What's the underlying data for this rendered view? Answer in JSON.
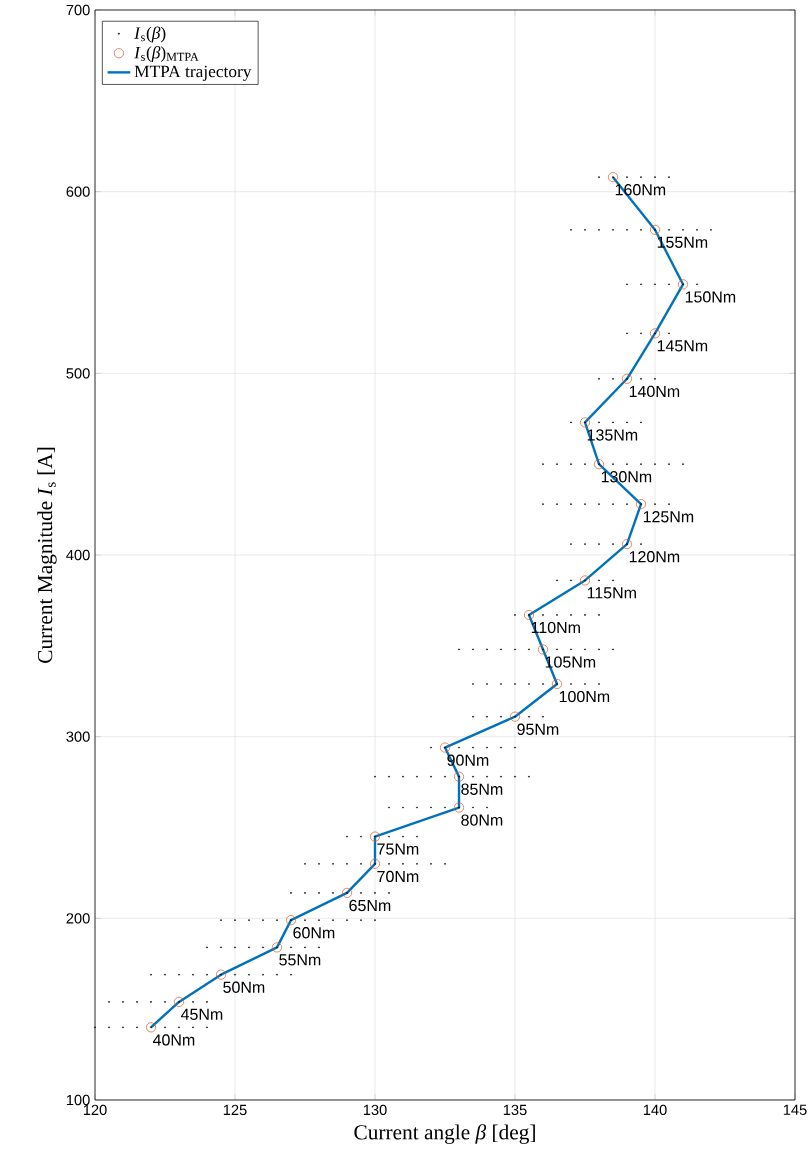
{
  "chart_data": {
    "type": "scatter",
    "xlabel": "Current angle *β* [deg]",
    "ylabel": "Current Magnitude *I*$_{s}$ [A]",
    "xlim": [
      120,
      145
    ],
    "ylim": [
      100,
      700
    ],
    "xticks": [
      120,
      125,
      130,
      135,
      140,
      145
    ],
    "yticks": [
      100,
      200,
      300,
      400,
      500,
      600,
      700
    ],
    "grid": true,
    "legend": "top left",
    "series": [
      {
        "name": "*I*$_{s}$(*β*)",
        "color": "#000000",
        "x": [
          120,
          120.5,
          121,
          121.5,
          122,
          122.5,
          123,
          123.5,
          124,
          120.5,
          121,
          121.5,
          122,
          122.5,
          123,
          123.5,
          124,
          122,
          122.5,
          123,
          123.5,
          124,
          124.5,
          125,
          125.5,
          126,
          126.5,
          127,
          124,
          124.5,
          125,
          125.5,
          126,
          126.5,
          127,
          127.5,
          128,
          124.5,
          125,
          125.5,
          126,
          126.5,
          127,
          127.5,
          128,
          128.5,
          129,
          129.5,
          130,
          127,
          127.5,
          128,
          128.5,
          129,
          129.5,
          130,
          130.5,
          127.5,
          128,
          128.5,
          129,
          129.5,
          130,
          130.5,
          131,
          131.5,
          132,
          132.5,
          129,
          129.5,
          130,
          130.5,
          131,
          131.5,
          130.5,
          131,
          131.5,
          132,
          132.5,
          133,
          133.5,
          134,
          130,
          130.5,
          131,
          131.5,
          132,
          132.5,
          133,
          133.5,
          134,
          134.5,
          135,
          135.5,
          132,
          132.5,
          133,
          133.5,
          134,
          134.5,
          135,
          133.5,
          134,
          134.5,
          135,
          135.5,
          136,
          133.5,
          134,
          134.5,
          135,
          135.5,
          136,
          136.5,
          137,
          137.5,
          138,
          133,
          133.5,
          134,
          134.5,
          135,
          135.5,
          136,
          136.5,
          137,
          137.5,
          138,
          138.5,
          135,
          135.5,
          136,
          136.5,
          137,
          137.5,
          138,
          136.5,
          137,
          137.5,
          138,
          138.5,
          137,
          137.5,
          138,
          138.5,
          139,
          139.5,
          136,
          136.5,
          137,
          137.5,
          138,
          138.5,
          139,
          139.5,
          140,
          140.5,
          136,
          136.5,
          137,
          137.5,
          138,
          138.5,
          139,
          139.5,
          140,
          140.5,
          141,
          137,
          137.5,
          138,
          138.5,
          139,
          139.5,
          138,
          138.5,
          139,
          139.5,
          140,
          139,
          139.5,
          140,
          140.5,
          139,
          139.5,
          140,
          140.5,
          141,
          141.5,
          137,
          137.5,
          138,
          138.5,
          139,
          139.5,
          140,
          140.5,
          141,
          141.5,
          142,
          138,
          138.5,
          139,
          139.5,
          140,
          140.5
        ],
        "values": [
          140,
          140,
          140,
          140,
          140,
          140,
          140,
          140,
          140,
          154,
          154,
          154,
          154,
          154,
          154,
          154,
          154,
          169,
          169,
          169,
          169,
          169,
          169,
          169,
          169,
          169,
          169,
          169,
          184,
          184,
          184,
          184,
          184,
          184,
          184,
          184,
          184,
          199,
          199,
          199,
          199,
          199,
          199,
          199,
          199,
          199,
          199,
          199,
          199,
          214,
          214,
          214,
          214,
          214,
          214,
          214,
          214,
          230,
          230,
          230,
          230,
          230,
          230,
          230,
          230,
          230,
          230,
          230,
          245,
          245,
          245,
          245,
          245,
          245,
          261,
          261,
          261,
          261,
          261,
          261,
          261,
          261,
          278,
          278,
          278,
          278,
          278,
          278,
          278,
          278,
          278,
          278,
          278,
          278,
          294,
          294,
          294,
          294,
          294,
          294,
          294,
          311,
          311,
          311,
          311,
          311,
          311,
          329,
          329,
          329,
          329,
          329,
          329,
          329,
          329,
          329,
          329,
          348,
          348,
          348,
          348,
          348,
          348,
          348,
          348,
          348,
          348,
          348,
          348,
          367,
          367,
          367,
          367,
          367,
          367,
          367,
          386,
          386,
          386,
          386,
          386,
          406,
          406,
          406,
          406,
          406,
          406,
          428,
          428,
          428,
          428,
          428,
          428,
          428,
          428,
          428,
          428,
          450,
          450,
          450,
          450,
          450,
          450,
          450,
          450,
          450,
          450,
          450,
          473,
          473,
          473,
          473,
          473,
          473,
          497,
          497,
          497,
          497,
          497,
          522,
          522,
          522,
          522,
          549,
          549,
          549,
          549,
          549,
          549,
          579,
          579,
          579,
          579,
          579,
          579,
          579,
          579,
          579,
          579,
          579,
          608,
          608,
          608,
          608,
          608,
          608
        ]
      },
      {
        "name": "*I*$_{s}$(*β*)$_{MTPA}$",
        "marker": "circle",
        "color": "#d95319",
        "x": [
          122,
          123,
          124.5,
          126.5,
          127,
          129,
          130,
          130,
          133,
          133,
          132.5,
          135,
          136.5,
          136,
          135.5,
          137.5,
          139,
          139.5,
          138,
          137.5,
          139,
          140,
          141,
          140,
          138.5
        ],
        "values": [
          140,
          154,
          169,
          184,
          199,
          214,
          230,
          245,
          261,
          278,
          294,
          311,
          329,
          348,
          367,
          386,
          406,
          428,
          450,
          473,
          497,
          522,
          549,
          579,
          608
        ]
      },
      {
        "name": "MTPA trajectory",
        "type": "line",
        "marker": "none",
        "line_style": "solid",
        "color": "#0072bd",
        "x": [
          122,
          123,
          124.5,
          126.5,
          127,
          129,
          130,
          130,
          133,
          133,
          132.5,
          135,
          136.5,
          136,
          135.5,
          137.5,
          139,
          139.5,
          138,
          137.5,
          139,
          140,
          141,
          140,
          138.5
        ],
        "values": [
          140,
          154,
          169,
          184,
          199,
          214,
          230,
          245,
          261,
          278,
          294,
          311,
          329,
          348,
          367,
          386,
          406,
          428,
          450,
          473,
          497,
          522,
          549,
          579,
          608
        ]
      }
    ],
    "annotations": [
      {
        "text": "40Nm",
        "x": 122,
        "y": 140
      },
      {
        "text": "45Nm",
        "x": 123,
        "y": 154
      },
      {
        "text": "50Nm",
        "x": 124.5,
        "y": 169
      },
      {
        "text": "55Nm",
        "x": 126.5,
        "y": 184
      },
      {
        "text": "60Nm",
        "x": 127,
        "y": 199
      },
      {
        "text": "65Nm",
        "x": 129,
        "y": 214
      },
      {
        "text": "70Nm",
        "x": 130,
        "y": 230
      },
      {
        "text": "75Nm",
        "x": 130,
        "y": 245
      },
      {
        "text": "80Nm",
        "x": 133,
        "y": 261
      },
      {
        "text": "85Nm",
        "x": 133,
        "y": 278
      },
      {
        "text": "90Nm",
        "x": 132.5,
        "y": 294
      },
      {
        "text": "95Nm",
        "x": 135,
        "y": 311
      },
      {
        "text": "100Nm",
        "x": 136.5,
        "y": 329
      },
      {
        "text": "105Nm",
        "x": 136,
        "y": 348
      },
      {
        "text": "110Nm",
        "x": 135.5,
        "y": 367
      },
      {
        "text": "115Nm",
        "x": 137.5,
        "y": 386
      },
      {
        "text": "120Nm",
        "x": 139,
        "y": 406
      },
      {
        "text": "125Nm",
        "x": 139.5,
        "y": 428
      },
      {
        "text": "130Nm",
        "x": 138,
        "y": 450
      },
      {
        "text": "135Nm",
        "x": 137.5,
        "y": 473
      },
      {
        "text": "140Nm",
        "x": 139,
        "y": 497
      },
      {
        "text": "145Nm",
        "x": 140,
        "y": 522
      },
      {
        "text": "150Nm",
        "x": 141,
        "y": 549
      },
      {
        "text": "155Nm",
        "x": 140,
        "y": 579
      },
      {
        "text": "160Nm",
        "x": 138.5,
        "y": 608
      }
    ]
  }
}
